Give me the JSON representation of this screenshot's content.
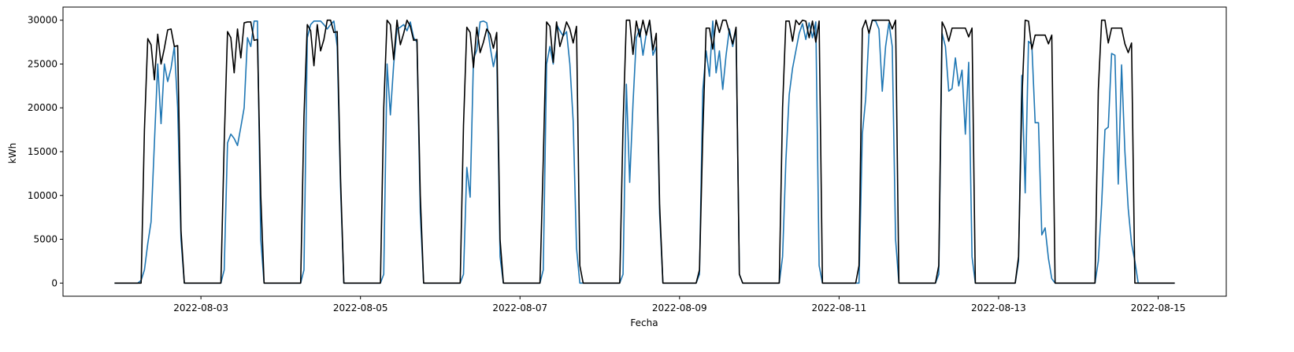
{
  "chart_data": {
    "type": "line",
    "x_label": "Fecha",
    "y_label": "kWh",
    "x": [
      "2022-08-01 22:00",
      "2022-08-02 05:00",
      "2022-08-02 06:00",
      "2022-08-02 07:00",
      "2022-08-02 08:00",
      "2022-08-02 09:00",
      "2022-08-02 10:00",
      "2022-08-02 11:00",
      "2022-08-02 12:00",
      "2022-08-02 13:00",
      "2022-08-02 14:00",
      "2022-08-02 15:00",
      "2022-08-02 16:00",
      "2022-08-02 17:00",
      "2022-08-02 18:00",
      "2022-08-02 19:00",
      "2022-08-02 20:00",
      "2022-08-03 05:00",
      "2022-08-03 06:00",
      "2022-08-03 07:00",
      "2022-08-03 08:00",
      "2022-08-03 09:00",
      "2022-08-03 10:00",
      "2022-08-03 11:00",
      "2022-08-03 12:00",
      "2022-08-03 13:00",
      "2022-08-03 14:00",
      "2022-08-03 15:00",
      "2022-08-03 16:00",
      "2022-08-03 17:00",
      "2022-08-03 18:00",
      "2022-08-03 19:00",
      "2022-08-03 20:00",
      "2022-08-04 05:00",
      "2022-08-04 06:00",
      "2022-08-04 07:00",
      "2022-08-04 08:00",
      "2022-08-04 09:00",
      "2022-08-04 10:00",
      "2022-08-04 11:00",
      "2022-08-04 12:00",
      "2022-08-04 13:00",
      "2022-08-04 14:00",
      "2022-08-04 15:00",
      "2022-08-04 16:00",
      "2022-08-04 17:00",
      "2022-08-04 18:00",
      "2022-08-04 19:00",
      "2022-08-04 20:00",
      "2022-08-05 05:00",
      "2022-08-05 06:00",
      "2022-08-05 07:00",
      "2022-08-05 08:00",
      "2022-08-05 09:00",
      "2022-08-05 10:00",
      "2022-08-05 11:00",
      "2022-08-05 12:00",
      "2022-08-05 13:00",
      "2022-08-05 14:00",
      "2022-08-05 15:00",
      "2022-08-05 16:00",
      "2022-08-05 17:00",
      "2022-08-05 18:00",
      "2022-08-05 19:00",
      "2022-08-05 20:00",
      "2022-08-06 05:00",
      "2022-08-06 06:00",
      "2022-08-06 07:00",
      "2022-08-06 08:00",
      "2022-08-06 09:00",
      "2022-08-06 10:00",
      "2022-08-06 11:00",
      "2022-08-06 12:00",
      "2022-08-06 13:00",
      "2022-08-06 14:00",
      "2022-08-06 15:00",
      "2022-08-06 16:00",
      "2022-08-06 17:00",
      "2022-08-06 18:00",
      "2022-08-06 19:00",
      "2022-08-06 20:00",
      "2022-08-07 05:00",
      "2022-08-07 06:00",
      "2022-08-07 07:00",
      "2022-08-07 08:00",
      "2022-08-07 09:00",
      "2022-08-07 10:00",
      "2022-08-07 11:00",
      "2022-08-07 12:00",
      "2022-08-07 13:00",
      "2022-08-07 14:00",
      "2022-08-07 15:00",
      "2022-08-07 16:00",
      "2022-08-07 17:00",
      "2022-08-07 18:00",
      "2022-08-07 19:00",
      "2022-08-07 20:00",
      "2022-08-08 05:00",
      "2022-08-08 06:00",
      "2022-08-08 07:00",
      "2022-08-08 08:00",
      "2022-08-08 09:00",
      "2022-08-08 10:00",
      "2022-08-08 11:00",
      "2022-08-08 12:00",
      "2022-08-08 13:00",
      "2022-08-08 14:00",
      "2022-08-08 15:00",
      "2022-08-08 16:00",
      "2022-08-08 17:00",
      "2022-08-08 18:00",
      "2022-08-08 19:00",
      "2022-08-08 20:00",
      "2022-08-09 05:00",
      "2022-08-09 06:00",
      "2022-08-09 07:00",
      "2022-08-09 08:00",
      "2022-08-09 09:00",
      "2022-08-09 10:00",
      "2022-08-09 11:00",
      "2022-08-09 12:00",
      "2022-08-09 13:00",
      "2022-08-09 14:00",
      "2022-08-09 15:00",
      "2022-08-09 16:00",
      "2022-08-09 17:00",
      "2022-08-09 18:00",
      "2022-08-09 19:00",
      "2022-08-09 20:00",
      "2022-08-10 05:00",
      "2022-08-10 06:00",
      "2022-08-10 07:00",
      "2022-08-10 08:00",
      "2022-08-10 09:00",
      "2022-08-10 10:00",
      "2022-08-10 11:00",
      "2022-08-10 12:00",
      "2022-08-10 13:00",
      "2022-08-10 14:00",
      "2022-08-10 15:00",
      "2022-08-10 16:00",
      "2022-08-10 17:00",
      "2022-08-10 18:00",
      "2022-08-10 19:00",
      "2022-08-10 20:00",
      "2022-08-11 05:00",
      "2022-08-11 06:00",
      "2022-08-11 07:00",
      "2022-08-11 08:00",
      "2022-08-11 09:00",
      "2022-08-11 10:00",
      "2022-08-11 11:00",
      "2022-08-11 12:00",
      "2022-08-11 13:00",
      "2022-08-11 14:00",
      "2022-08-11 15:00",
      "2022-08-11 16:00",
      "2022-08-11 17:00",
      "2022-08-11 18:00",
      "2022-08-11 19:00",
      "2022-08-11 20:00",
      "2022-08-12 05:00",
      "2022-08-12 06:00",
      "2022-08-12 07:00",
      "2022-08-12 08:00",
      "2022-08-12 09:00",
      "2022-08-12 10:00",
      "2022-08-12 11:00",
      "2022-08-12 12:00",
      "2022-08-12 13:00",
      "2022-08-12 14:00",
      "2022-08-12 15:00",
      "2022-08-12 16:00",
      "2022-08-12 17:00",
      "2022-08-12 18:00",
      "2022-08-12 19:00",
      "2022-08-12 20:00",
      "2022-08-13 05:00",
      "2022-08-13 06:00",
      "2022-08-13 07:00",
      "2022-08-13 08:00",
      "2022-08-13 09:00",
      "2022-08-13 10:00",
      "2022-08-13 11:00",
      "2022-08-13 12:00",
      "2022-08-13 13:00",
      "2022-08-13 14:00",
      "2022-08-13 15:00",
      "2022-08-13 16:00",
      "2022-08-13 17:00",
      "2022-08-13 18:00",
      "2022-08-13 19:00",
      "2022-08-13 20:00",
      "2022-08-14 05:00",
      "2022-08-14 06:00",
      "2022-08-14 07:00",
      "2022-08-14 08:00",
      "2022-08-14 09:00",
      "2022-08-14 10:00",
      "2022-08-14 11:00",
      "2022-08-14 12:00",
      "2022-08-14 13:00",
      "2022-08-14 14:00",
      "2022-08-14 15:00",
      "2022-08-14 16:00",
      "2022-08-14 17:00",
      "2022-08-14 18:00",
      "2022-08-14 19:00",
      "2022-08-14 20:00",
      "2022-08-15 05:00"
    ],
    "series": [
      {
        "color": "#1f77b4",
        "values": [
          0,
          0,
          300,
          1500,
          4500,
          7000,
          16000,
          25000,
          18200,
          25000,
          23000,
          24500,
          27000,
          20000,
          5000,
          0,
          0,
          0,
          0,
          1500,
          16000,
          17000,
          16500,
          15700,
          17800,
          20000,
          28000,
          27000,
          29900,
          29900,
          5000,
          0,
          0,
          0,
          0,
          1500,
          28000,
          29500,
          29900,
          29900,
          29900,
          29500,
          29000,
          29500,
          29900,
          27000,
          11000,
          0,
          0,
          0,
          0,
          1000,
          25000,
          19200,
          25000,
          29000,
          29200,
          29500,
          28800,
          29800,
          28000,
          27500,
          8000,
          0,
          0,
          0,
          0,
          1000,
          13200,
          9800,
          25600,
          26600,
          29800,
          29900,
          29700,
          27000,
          24700,
          26500,
          3000,
          0,
          0,
          0,
          0,
          1500,
          25000,
          27000,
          25000,
          29500,
          28800,
          28200,
          28700,
          25000,
          18500,
          4000,
          0,
          0,
          0,
          0,
          0,
          1000,
          22700,
          11500,
          20500,
          28000,
          29000,
          26000,
          28500,
          29900,
          26000,
          27000,
          8000,
          0,
          0,
          0,
          1000,
          22000,
          26500,
          23600,
          29900,
          24000,
          26500,
          22100,
          26000,
          29000,
          27000,
          29000,
          1000,
          0,
          0,
          0,
          0,
          3000,
          14000,
          21500,
          24500,
          26500,
          28500,
          29600,
          27800,
          29700,
          28000,
          29800,
          2000,
          0,
          0,
          0,
          0,
          17000,
          21000,
          28500,
          30000,
          29900,
          29000,
          21900,
          27000,
          29700,
          27000,
          5000,
          0,
          0,
          0,
          0,
          1000,
          28500,
          27000,
          21900,
          22200,
          25700,
          22500,
          24300,
          17000,
          25200,
          3000,
          0,
          0,
          0,
          0,
          0,
          2500,
          23700,
          10300,
          27600,
          27200,
          18300,
          18300,
          5500,
          6300,
          2800,
          500,
          0,
          0,
          0,
          0,
          0,
          2500,
          9000,
          17500,
          17800,
          26200,
          26000,
          11300,
          24900,
          15000,
          8500,
          4500,
          2500,
          0,
          0,
          0,
          0
        ]
      },
      {
        "color": "#000000",
        "values": [
          0,
          0,
          0,
          17500,
          27900,
          27200,
          23200,
          28400,
          25000,
          26800,
          28900,
          29000,
          27000,
          27100,
          6000,
          0,
          0,
          0,
          0,
          16000,
          28700,
          28000,
          24000,
          29000,
          25700,
          29700,
          29800,
          29800,
          27700,
          27800,
          10000,
          0,
          0,
          0,
          0,
          19000,
          29500,
          28800,
          24800,
          29500,
          26500,
          27800,
          30000,
          30000,
          28600,
          28700,
          12000,
          0,
          0,
          0,
          0,
          20000,
          30000,
          29500,
          25500,
          30000,
          27200,
          28500,
          30000,
          29300,
          27700,
          27800,
          10000,
          0,
          0,
          0,
          0,
          18000,
          29200,
          28600,
          24600,
          29200,
          26300,
          27500,
          29000,
          28400,
          26800,
          28600,
          5000,
          0,
          0,
          0,
          0,
          14000,
          29800,
          29300,
          25200,
          29800,
          27000,
          28300,
          29800,
          29000,
          27400,
          29300,
          2000,
          0,
          0,
          0,
          0,
          18000,
          30000,
          30000,
          26100,
          29900,
          28100,
          30000,
          28300,
          30000,
          26600,
          28500,
          9000,
          0,
          0,
          0,
          1500,
          17000,
          29100,
          29100,
          26700,
          30000,
          28600,
          30000,
          30000,
          28600,
          27300,
          29200,
          1000,
          0,
          0,
          0,
          0,
          20000,
          29900,
          29900,
          27600,
          30000,
          29500,
          30000,
          29900,
          28000,
          29900,
          27500,
          29900,
          0,
          0,
          0,
          2000,
          29000,
          30000,
          28500,
          30000,
          30000,
          30000,
          30000,
          30000,
          30000,
          29000,
          30000,
          0,
          0,
          0,
          0,
          2000,
          29800,
          29000,
          27600,
          29100,
          29100,
          29100,
          29100,
          29100,
          28100,
          29100,
          0,
          0,
          0,
          0,
          0,
          3000,
          21000,
          30000,
          29900,
          26700,
          28300,
          28300,
          28300,
          28300,
          27300,
          28300,
          0,
          0,
          0,
          0,
          0,
          22000,
          30000,
          30000,
          27400,
          29100,
          29100,
          29100,
          29100,
          27300,
          26300,
          27400,
          0,
          0,
          0,
          0,
          0
        ]
      }
    ],
    "xlim": [
      "2022-08-01 06:30",
      "2022-08-15 20:30"
    ],
    "xticks": [
      "2022-08-03",
      "2022-08-05",
      "2022-08-07",
      "2022-08-09",
      "2022-08-11",
      "2022-08-13",
      "2022-08-15"
    ],
    "ylim": [
      -1500,
      31500
    ],
    "yticks": [
      0,
      5000,
      10000,
      15000,
      20000,
      25000,
      30000
    ]
  }
}
